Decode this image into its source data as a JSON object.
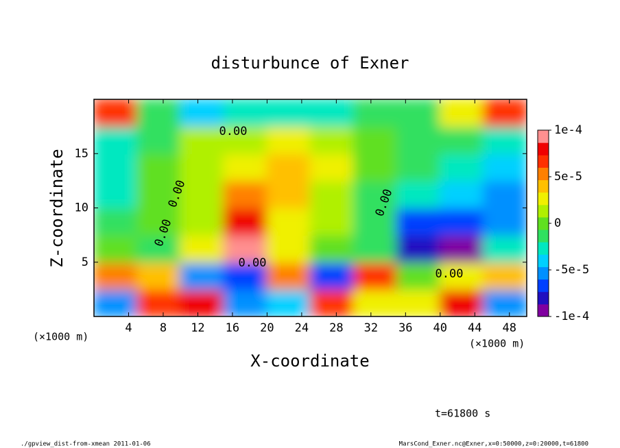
{
  "chart_data": {
    "type": "heatmap",
    "title": "disturbunce of Exner",
    "xlabel": "X-coordinate",
    "ylabel": "Z-coordinate",
    "x_unit": "(×1000 m)",
    "contour_label": "0.00",
    "time_label": "t=61800 s",
    "footer_left": "./gpview_dist-from-xmean  2011-01-06",
    "footer_right": "MarsCond_Exner.nc@Exner,x=0:50000,z=0:20000,t=61800",
    "x": [
      2.5,
      7.5,
      12.5,
      17.5,
      22.5,
      27.5,
      32.5,
      37.5,
      42.5,
      47.5
    ],
    "z": [
      1.25,
      3.75,
      6.25,
      8.75,
      11.25,
      13.75,
      16.25,
      18.75
    ],
    "values": [
      [
        -6e-05,
        6e-05,
        8e-05,
        -5e-05,
        -4e-05,
        7e-05,
        3e-05,
        2e-05,
        8e-05,
        -6e-05
      ],
      [
        5e-05,
        4e-05,
        -5e-05,
        -7e-05,
        5e-05,
        -7e-05,
        6e-05,
        0,
        3e-05,
        4e-05
      ],
      [
        0,
        -2e-05,
        2e-05,
        0.0001,
        2e-05,
        0,
        -2e-05,
        -8e-05,
        -9e-05,
        -3e-05
      ],
      [
        -2e-05,
        0,
        1e-05,
        8e-05,
        3e-05,
        1e-05,
        -1e-05,
        -7e-05,
        -7e-05,
        -5e-05
      ],
      [
        -3e-05,
        0,
        1e-05,
        5e-05,
        4e-05,
        1e-05,
        -1e-05,
        -3e-05,
        -4e-05,
        -5e-05
      ],
      [
        -3e-05,
        0,
        1e-05,
        3e-05,
        4e-05,
        2e-05,
        0,
        -2e-05,
        -3e-05,
        -4e-05
      ],
      [
        -3e-05,
        -1e-05,
        1e-05,
        1e-05,
        2e-05,
        1e-05,
        0,
        -1e-05,
        -2e-05,
        -3e-05
      ],
      [
        6e-05,
        -2e-05,
        -4e-05,
        -3e-05,
        -3e-05,
        -3e-05,
        -2e-05,
        -1e-05,
        3e-05,
        7e-05
      ]
    ],
    "xlim": [
      0,
      50
    ],
    "xticks": [
      4,
      8,
      12,
      16,
      20,
      24,
      28,
      32,
      36,
      40,
      44,
      48
    ],
    "ylim": [
      0,
      20
    ],
    "yticks": [
      5,
      10,
      15
    ],
    "clim": [
      -0.0001,
      0.0001
    ],
    "cticks": [
      {
        "value": 0.0001,
        "label": "1e-4"
      },
      {
        "value": 5e-05,
        "label": "5e-5"
      },
      0,
      {
        "value": -5e-05,
        "label": "-5e-5"
      },
      {
        "value": -0.0001,
        "label": "-1e-4"
      }
    ],
    "colormap": [
      "#8000a0",
      "#2010c0",
      "#0040ff",
      "#0090ff",
      "#00d0ff",
      "#00e8c0",
      "#30e060",
      "#60e020",
      "#b0f000",
      "#f0f000",
      "#ffc000",
      "#ff8000",
      "#ff3000",
      "#f00000",
      "#ff9090"
    ]
  }
}
